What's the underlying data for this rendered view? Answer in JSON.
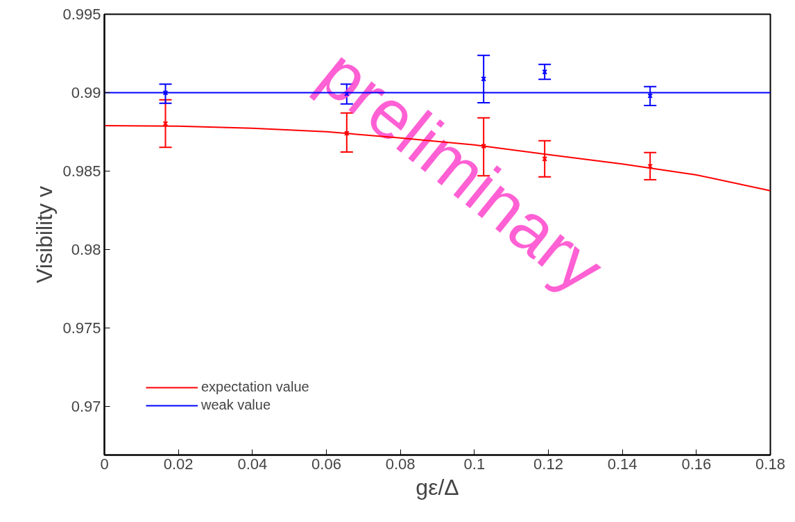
{
  "chart_data": {
    "type": "scatter",
    "xlabel": "gε/Δ",
    "ylabel": "Visibility v",
    "xlim": [
      0,
      0.18
    ],
    "xticks": [
      0,
      0.02,
      0.04,
      0.06,
      0.08,
      0.1,
      0.12,
      0.14,
      0.16,
      0.18
    ],
    "ylim": [
      0.9669,
      0.995
    ],
    "yticks": [
      0.97,
      0.975,
      0.98,
      0.985,
      0.99,
      0.995
    ],
    "grid": false,
    "legend": "bottom left",
    "annotations": [
      "preliminary"
    ],
    "series": [
      {
        "type": "line",
        "name": "expectation value",
        "color": "#ff0000",
        "x": [
          0,
          0.02,
          0.04,
          0.06,
          0.08,
          0.1,
          0.12,
          0.14,
          0.16,
          0.18
        ],
        "values": [
          0.9879,
          0.98786,
          0.98773,
          0.98751,
          0.98711,
          0.98667,
          0.98605,
          0.98545,
          0.98476,
          0.98375
        ]
      },
      {
        "type": "line",
        "name": "weak value",
        "color": "#0000ff",
        "x": [
          0,
          0.18
        ],
        "values": [
          0.99,
          0.99
        ]
      },
      {
        "marker": "cross",
        "color": "#ff0000",
        "x": [
          0.0165,
          0.0655,
          0.1025,
          0.119,
          0.1475
        ],
        "values": [
          0.98803,
          0.98741,
          0.98659,
          0.98578,
          0.98531
        ],
        "errors": [
          [
            0.98652,
            0.98955
          ],
          [
            0.98622,
            0.98871
          ],
          [
            0.9847,
            0.9884
          ],
          [
            0.98463,
            0.98693
          ],
          [
            0.98445,
            0.98618
          ]
        ]
      },
      {
        "marker": "cross",
        "color": "#0000ff",
        "x": [
          0.0165,
          0.0655,
          0.1025,
          0.119,
          0.1475
        ],
        "values": [
          0.98999,
          0.98992,
          0.99088,
          0.99132,
          0.9898
        ],
        "errors": [
          [
            0.98933,
            0.99054
          ],
          [
            0.98928,
            0.99054
          ],
          [
            0.98936,
            0.99238
          ],
          [
            0.99085,
            0.9918
          ],
          [
            0.98918,
            0.99039
          ]
        ]
      }
    ]
  }
}
